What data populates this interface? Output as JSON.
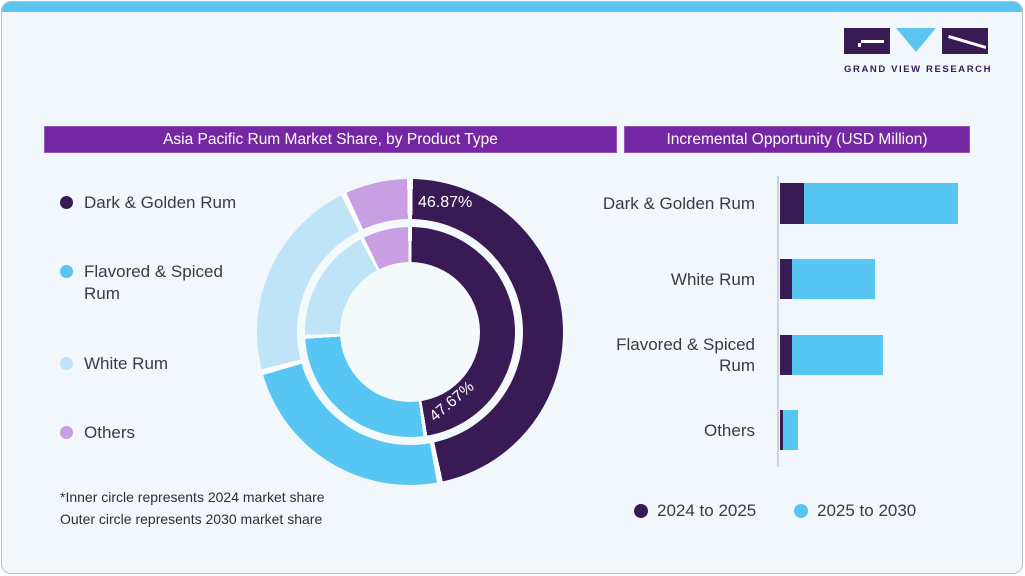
{
  "page": {
    "card_bg": "#f1f7fa",
    "top_accent_color": "#5cc6f1",
    "border_color": "#b9c0c7",
    "title_bar_color": "#7527a3"
  },
  "logo": {
    "text": "GRAND VIEW RESEARCH",
    "dark_color": "#381b54",
    "blue_color": "#5cc6f1"
  },
  "left_panel": {
    "title": "Asia Pacific Rum Market Share, by Product Type",
    "legend": [
      {
        "label": "Dark & Golden Rum",
        "color": "#381b54"
      },
      {
        "label": "Flavored & Spiced Rum",
        "color": "#58c6f2"
      },
      {
        "label": "White Rum",
        "color": "#bfe4f8"
      },
      {
        "label": "Others",
        "color": "#c89fe3"
      }
    ],
    "labels": {
      "outer": "46.87%",
      "inner": "47.67%"
    },
    "footnote_line1": "*Inner circle represents 2024 market share",
    "footnote_line2": "Outer circle represents 2030 market share"
  },
  "right_panel": {
    "title": "Incremental Opportunity (USD Million)",
    "legend": [
      {
        "label": "2024 to 2025",
        "color": "#381b54"
      },
      {
        "label": "2025 to 2030",
        "color": "#58c6f2"
      }
    ]
  },
  "chart_data": [
    {
      "type": "pie",
      "subtype": "double-donut",
      "title": "Asia Pacific Rum Market Share, by Product Type",
      "categories": [
        "Dark & Golden Rum",
        "Flavored & Spiced Rum",
        "White Rum",
        "Others"
      ],
      "colors": [
        "#381b54",
        "#58c6f2",
        "#bfe4f8",
        "#c89fe3"
      ],
      "series": [
        {
          "name": "2024 market share (inner circle)",
          "values": [
            47.67,
            26.6,
            18.2,
            7.53
          ]
        },
        {
          "name": "2030 market share (outer circle)",
          "values": [
            46.87,
            23.9,
            22.1,
            7.13
          ]
        }
      ],
      "printed_labels": {
        "inner_dark_golden_rum": "47.67%",
        "outer_dark_golden_rum": "46.87%"
      },
      "value_note": "Only the two Dark & Golden Rum shares are printed on the chart; other segment values are estimated from arc angles",
      "start_angle_deg": 0,
      "direction": "clockwise"
    },
    {
      "type": "bar",
      "orientation": "horizontal",
      "stacked": true,
      "title": "Incremental Opportunity (USD Million)",
      "categories": [
        "Dark & Golden Rum",
        "White Rum",
        "Flavored & Spiced Rum",
        "Others"
      ],
      "series": [
        {
          "name": "2024 to 2025",
          "color": "#381b54",
          "values": [
            13.5,
            6.7,
            6.7,
            1.7
          ]
        },
        {
          "name": "2025 to 2030",
          "color": "#58c6f2",
          "values": [
            86.5,
            46.6,
            51.1,
            8.4
          ]
        }
      ],
      "value_axis": "no tick labels shown; values are relative lengths with longest stacked bar = 100",
      "legend_position": "bottom"
    }
  ]
}
